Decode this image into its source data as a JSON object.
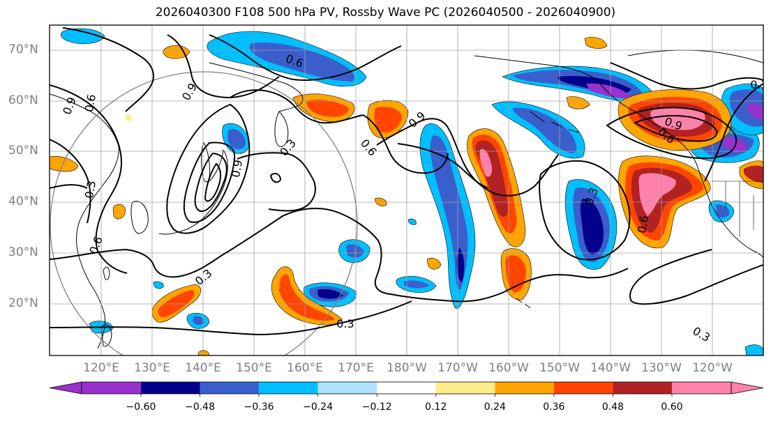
{
  "title": "2026040300 F108 500 hPa PV, Rossby Wave PC (2026040500 - 2026040900)",
  "lat_ticks": [
    "70°N",
    "60°N",
    "50°N",
    "40°N",
    "30°N",
    "20°N"
  ],
  "lon_ticks": [
    "120°E",
    "130°E",
    "140°E",
    "150°E",
    "160°E",
    "170°E",
    "180°W",
    "170°W",
    "160°W",
    "150°W",
    "140°W",
    "130°W",
    "120°W"
  ],
  "colorbar": {
    "colors": [
      "#9932cc",
      "#00008b",
      "#3a5fcd",
      "#00bfff",
      "#b0e2ff",
      "#ffffff",
      "#ffec8b",
      "#ffa500",
      "#ff4500",
      "#b22222",
      "#ff82ab"
    ],
    "tick_labels": [
      "−0.60",
      "−0.48",
      "−0.36",
      "−0.24",
      "−0.12",
      "0.12",
      "0.24",
      "0.36",
      "0.48",
      "0.60"
    ]
  },
  "contour_labels": [
    "0.6",
    "0.9",
    "0.9",
    "0.6",
    "0.3",
    "0.3",
    "0.6",
    "0.3",
    "0.9",
    "0.6",
    "0.3",
    "0.9",
    "0.6",
    "0.3",
    "0.3",
    "0.9",
    "0.6",
    "0.3"
  ],
  "colors": {
    "contour": "#000000",
    "coast": "#000000",
    "grid": "#a0a0a0",
    "circle": "#808080",
    "axis_text": "#7f7f7f"
  }
}
